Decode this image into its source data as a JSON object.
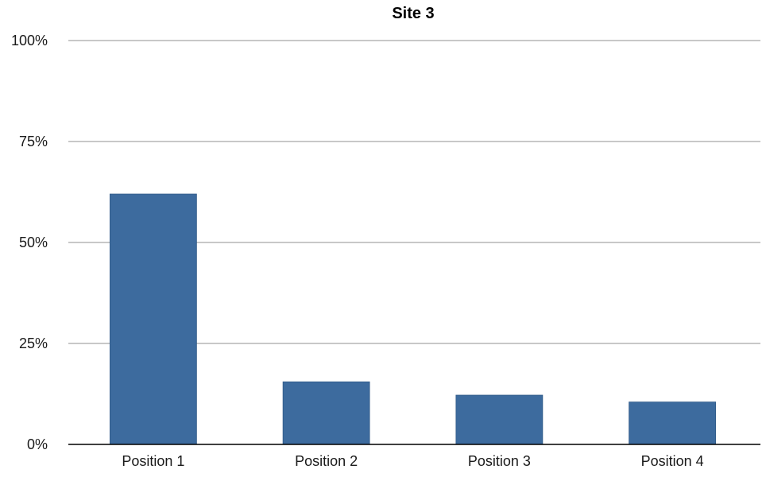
{
  "chart_data": {
    "type": "bar",
    "title": "Site 3",
    "xlabel": "",
    "ylabel": "",
    "categories": [
      "Position 1",
      "Position 2",
      "Position 3",
      "Position 4"
    ],
    "values": [
      62,
      15.5,
      12.2,
      10.5
    ],
    "ylim": [
      0,
      100
    ],
    "yticks": [
      0,
      25,
      50,
      75,
      100
    ],
    "ytick_labels": [
      "0%",
      "25%",
      "50%",
      "75%",
      "100%"
    ],
    "grid": true,
    "legend": "none",
    "bar_color": "#3d6b9e",
    "grid_color": "#a6a6a6",
    "axis_color": "#000000"
  }
}
